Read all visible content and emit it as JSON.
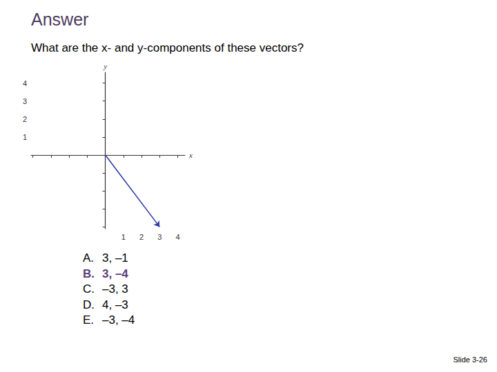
{
  "title": "Answer",
  "question": "What are the x- and y-components of these vectors?",
  "chart_data": {
    "type": "vector",
    "x_label": "x",
    "y_label": "y",
    "start": [
      0,
      0
    ],
    "end": [
      3,
      -4
    ],
    "color": "#2f3da8",
    "xlim": [
      -4.1,
      4.4
    ],
    "ylim": [
      -4.1,
      4.6
    ],
    "xticks": [
      {
        "value": -4,
        "label": null
      },
      {
        "value": -3,
        "label": null
      },
      {
        "value": -2,
        "label": null
      },
      {
        "value": -1,
        "label": null
      },
      1,
      2,
      3,
      4
    ],
    "yticks": [
      {
        "value": -4,
        "label": null
      },
      {
        "value": -3,
        "label": null
      },
      {
        "value": -2,
        "label": null
      },
      {
        "value": -1,
        "label": null
      },
      1,
      2,
      3,
      4
    ],
    "grid": false
  },
  "choices": [
    {
      "letter": "A.",
      "text": "3, –1"
    },
    {
      "letter": "B.",
      "text": "3, –4"
    },
    {
      "letter": "C.",
      "text": "–3, 3"
    },
    {
      "letter": "D.",
      "text": "4, –3"
    },
    {
      "letter": "E.",
      "text": "–3, –4"
    }
  ],
  "answer": "B.",
  "footer": "Slide 3-26"
}
